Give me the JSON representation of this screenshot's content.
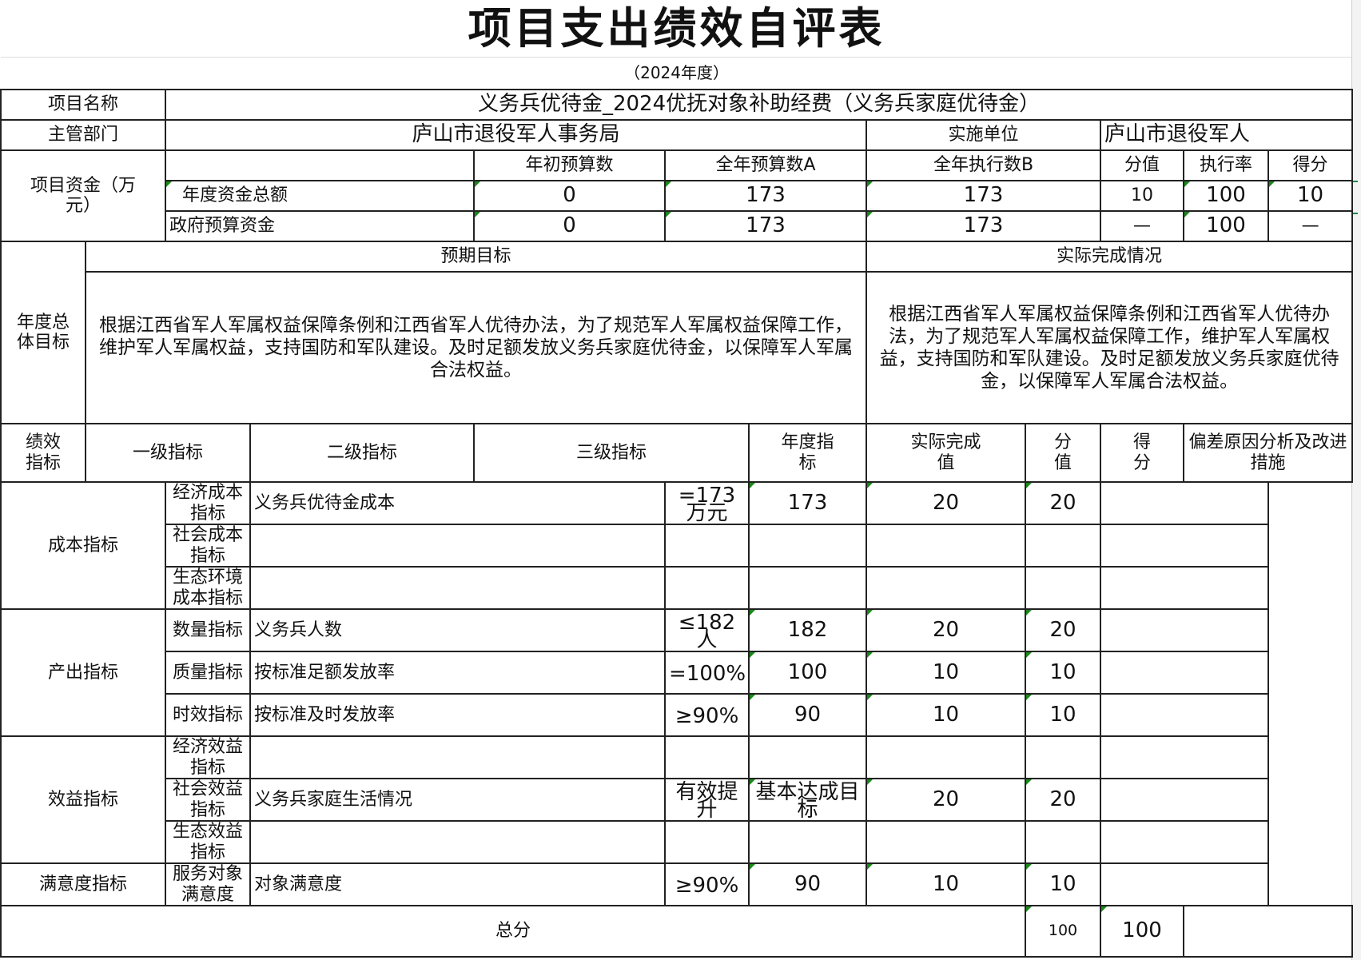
{
  "title": "项目支出绩效自评表",
  "year": "（2024年度）",
  "project": {
    "label": "项目名称",
    "value": "义务兵优待金_2024优抚对象补助经费（义务兵家庭优待金）"
  },
  "dept": {
    "label": "主管部门",
    "value": "庐山市退役军人事务局",
    "impl_label": "实施单位",
    "impl_value": "庐山市退役军人"
  },
  "funds": {
    "label": "项目资金（万元）",
    "headers": [
      "年初预算数",
      "全年预算数A",
      "全年执行数B",
      "分值",
      "执行率",
      "得分"
    ],
    "rows": [
      {
        "name": "年度资金总额",
        "values": [
          "0",
          "173",
          "173",
          "10",
          "100",
          "10"
        ]
      },
      {
        "name": "政府预算资金",
        "values": [
          "0",
          "173",
          "173",
          "—",
          "100",
          "—"
        ]
      }
    ]
  },
  "goals": {
    "label": "年度总体目标",
    "expected_header": "预期目标",
    "actual_header": "实际完成情况",
    "expected": "根据江西省军人军属权益保障条例和江西省军人优待办法，为了规范军人军属权益保障工作，维护军人军属权益，支持国防和军队建设。及时足额发放义务兵家庭优待金，以保障军人军属合法权益。",
    "actual": "根据江西省军人军属权益保障条例和江西省军人优待办法，为了规范军人军属权益保障工作，维护军人军属权益，支持国防和军队建设。及时足额发放义务兵家庭优待金，以保障军人军属合法权益。"
  },
  "indicators": {
    "label": "绩效指标",
    "headers": [
      "一级指标",
      "二级指标",
      "三级指标",
      "年度指标",
      "实际完成值",
      "分值",
      "得分",
      "偏差原因分析及改进措施"
    ],
    "groups": [
      {
        "name": "成本指标",
        "rows": [
          {
            "l2": "经济成本指标",
            "l3": "义务兵优待金成本",
            "target": "=173万元",
            "actual": "173",
            "score": "20",
            "got": "20"
          },
          {
            "l2": "社会成本指标",
            "l3": "",
            "target": "",
            "actual": "",
            "score": "",
            "got": ""
          },
          {
            "l2": "生态环境成本指标",
            "l3": "",
            "target": "",
            "actual": "",
            "score": "",
            "got": ""
          }
        ]
      },
      {
        "name": "产出指标",
        "rows": [
          {
            "l2": "数量指标",
            "l3": "义务兵人数",
            "target": "≤182人",
            "actual": "182",
            "score": "20",
            "got": "20"
          },
          {
            "l2": "质量指标",
            "l3": "按标准足额发放率",
            "target": "=100%",
            "actual": "100",
            "score": "10",
            "got": "10"
          },
          {
            "l2": "时效指标",
            "l3": "按标准及时发放率",
            "target": "≥90%",
            "actual": "90",
            "score": "10",
            "got": "10"
          }
        ]
      },
      {
        "name": "效益指标",
        "rows": [
          {
            "l2": "经济效益指标",
            "l3": "",
            "target": "",
            "actual": "",
            "score": "",
            "got": ""
          },
          {
            "l2": "社会效益指标",
            "l3": "义务兵家庭生活情况",
            "target": "有效提升",
            "actual": "基本达成目标",
            "score": "20",
            "got": "20"
          },
          {
            "l2": "生态效益指标",
            "l3": "",
            "target": "",
            "actual": "",
            "score": "",
            "got": ""
          }
        ]
      },
      {
        "name": "满意度指标",
        "rows": [
          {
            "l2": "服务对象满意度",
            "l3": "对象满意度",
            "target": "≥90%",
            "actual": "90",
            "score": "10",
            "got": "10"
          }
        ]
      }
    ]
  },
  "total": {
    "label": "总分",
    "score": "100",
    "got": "100"
  }
}
